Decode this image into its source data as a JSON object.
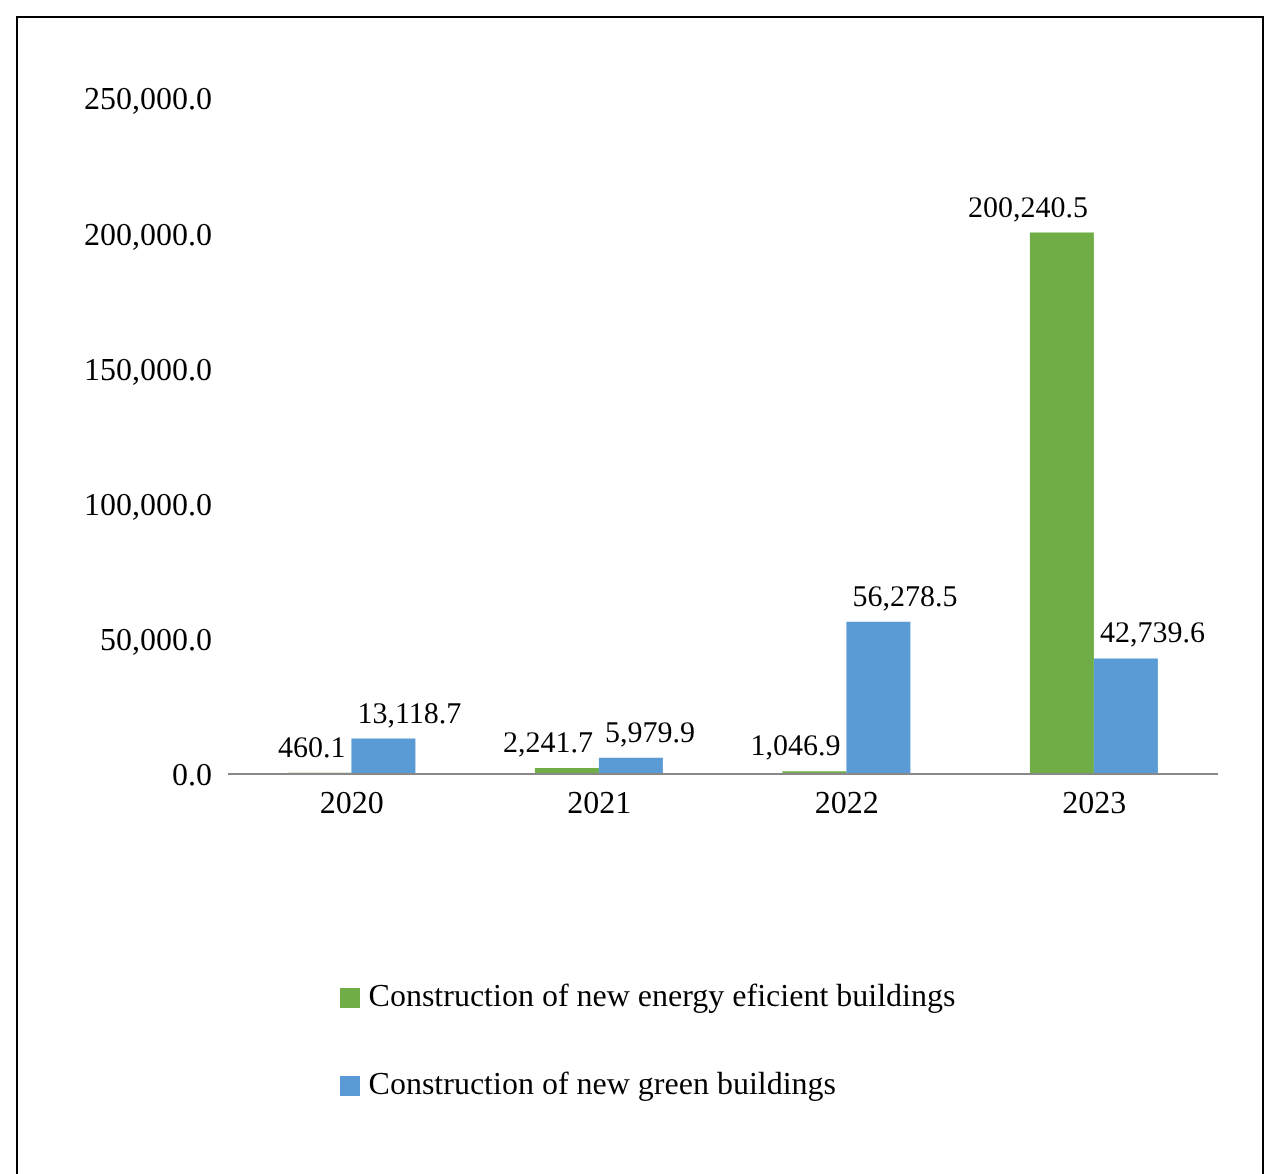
{
  "chart_data": {
    "type": "bar",
    "categories": [
      "2020",
      "2021",
      "2022",
      "2023"
    ],
    "series": [
      {
        "name": "Construction of new energy eficient buildings",
        "color": "#70ad47",
        "values": [
          460.1,
          2241.7,
          1046.9,
          200240.5
        ],
        "value_labels": [
          "460.1",
          "2,241.7",
          "1,046.9",
          "200,240.5"
        ]
      },
      {
        "name": "Construction of new green buildings",
        "color": "#5b9bd5",
        "values": [
          13118.7,
          5979.9,
          56278.5,
          42739.6
        ],
        "value_labels": [
          "13,118.7",
          "5,979.9",
          "56,278.5",
          "42,739.6"
        ]
      }
    ],
    "ylim": [
      0,
      250000
    ],
    "yticks": [
      {
        "value": 0,
        "label": "0.0"
      },
      {
        "value": 50000,
        "label": "50,000.0"
      },
      {
        "value": 100000,
        "label": "100,000.0"
      },
      {
        "value": 150000,
        "label": "150,000.0"
      },
      {
        "value": 200000,
        "label": "200,000.0"
      },
      {
        "value": 250000,
        "label": "250,000.0"
      }
    ],
    "grid": false,
    "legend": "bottom"
  }
}
